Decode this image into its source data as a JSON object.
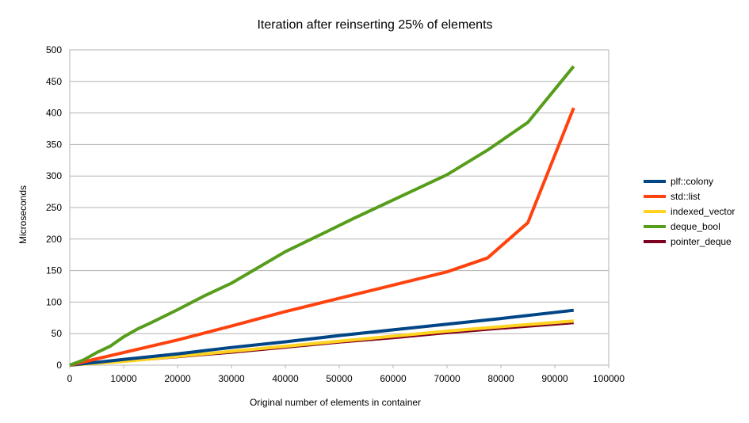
{
  "chart_data": {
    "type": "line",
    "title": "Iteration after reinserting 25% of elements",
    "xlabel": "Original number of elements in container",
    "ylabel": "Microseconds",
    "xlim": [
      0,
      100000
    ],
    "ylim": [
      0,
      500
    ],
    "x_ticks": [
      "0",
      "10000",
      "20000",
      "30000",
      "40000",
      "50000",
      "60000",
      "70000",
      "80000",
      "90000",
      "100000"
    ],
    "y_ticks": [
      "0",
      "50",
      "100",
      "150",
      "200",
      "250",
      "300",
      "350",
      "400",
      "450",
      "500"
    ],
    "grid": true,
    "legend_position": "right",
    "series": [
      {
        "name": "plf::colony",
        "color": "#004586",
        "points": [
          [
            0,
            0
          ],
          [
            10000,
            9
          ],
          [
            20000,
            18
          ],
          [
            30000,
            28
          ],
          [
            40000,
            37
          ],
          [
            50000,
            47
          ],
          [
            60000,
            56
          ],
          [
            70000,
            65
          ],
          [
            80000,
            74
          ],
          [
            93500,
            87
          ]
        ]
      },
      {
        "name": "std::list",
        "color": "#ff420e",
        "points": [
          [
            0,
            0
          ],
          [
            5000,
            10
          ],
          [
            10000,
            20
          ],
          [
            20000,
            40
          ],
          [
            30000,
            62
          ],
          [
            40000,
            85
          ],
          [
            50000,
            106
          ],
          [
            60000,
            127
          ],
          [
            70000,
            148
          ],
          [
            77500,
            170
          ],
          [
            85000,
            226
          ],
          [
            93500,
            408
          ]
        ]
      },
      {
        "name": "indexed_vector",
        "color": "#ffd320",
        "points": [
          [
            0,
            0
          ],
          [
            10000,
            6
          ],
          [
            20000,
            14
          ],
          [
            30000,
            22
          ],
          [
            40000,
            30
          ],
          [
            50000,
            38
          ],
          [
            60000,
            46
          ],
          [
            70000,
            54
          ],
          [
            80000,
            61
          ],
          [
            93500,
            70
          ]
        ]
      },
      {
        "name": "deque_bool",
        "color": "#579d1c",
        "points": [
          [
            0,
            0
          ],
          [
            2500,
            8
          ],
          [
            5000,
            20
          ],
          [
            7500,
            30
          ],
          [
            10000,
            45
          ],
          [
            12500,
            57
          ],
          [
            15000,
            67
          ],
          [
            20000,
            88
          ],
          [
            25000,
            110
          ],
          [
            30000,
            130
          ],
          [
            35000,
            155
          ],
          [
            40000,
            180
          ],
          [
            47500,
            211
          ],
          [
            52500,
            232
          ],
          [
            60000,
            262
          ],
          [
            70000,
            302
          ],
          [
            77500,
            341
          ],
          [
            85000,
            385
          ],
          [
            93500,
            474
          ]
        ]
      },
      {
        "name": "pointer_deque",
        "color": "#7e0021",
        "points": [
          [
            0,
            0
          ],
          [
            10000,
            6
          ],
          [
            20000,
            13
          ],
          [
            30000,
            20
          ],
          [
            40000,
            28
          ],
          [
            50000,
            36
          ],
          [
            60000,
            43
          ],
          [
            70000,
            51
          ],
          [
            80000,
            58
          ],
          [
            93500,
            67
          ]
        ]
      }
    ]
  }
}
